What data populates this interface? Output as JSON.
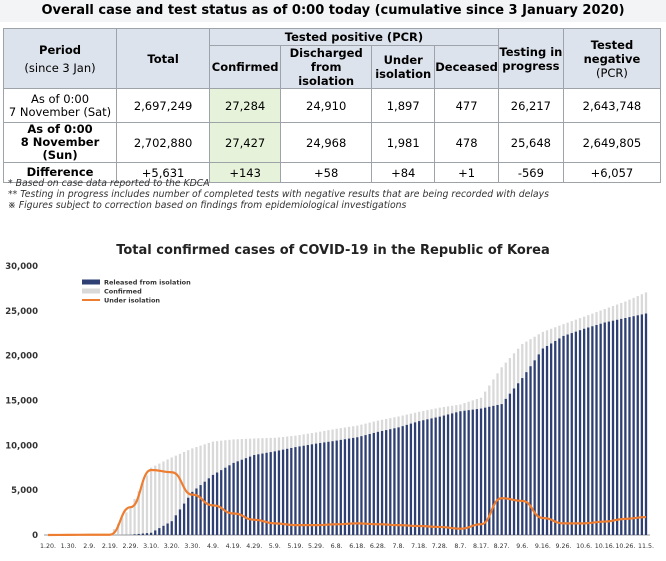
{
  "header": {
    "title": "Overall case and test status as of 0:00 today (cumulative since 3 January 2020)"
  },
  "table": {
    "col_period": "Period",
    "col_period_sub": "(since 3 Jan)",
    "col_total": "Total",
    "col_tested_positive": "Tested positive (PCR)",
    "col_confirmed": "Confirmed",
    "col_discharged_1": "Discharged",
    "col_discharged_2": "from isolation",
    "col_under_1": "Under",
    "col_under_2": "isolation",
    "col_deceased": "Deceased",
    "col_testing_1": "Testing in",
    "col_testing_2": "progress",
    "col_negative_1": "Tested negative",
    "col_negative_2": "(PCR)",
    "rows": [
      {
        "label_1": "As of 0:00",
        "label_2": "7 November (Sat)",
        "total": "2,697,249",
        "confirmed": "27,284",
        "discharged": "24,910",
        "under": "1,897",
        "deceased": "477",
        "testing": "26,217",
        "negative": "2,643,748"
      },
      {
        "label_1": "As of 0:00",
        "label_2": "8 November (Sun)",
        "total": "2,702,880",
        "confirmed": "27,427",
        "discharged": "24,968",
        "under": "1,981",
        "deceased": "478",
        "testing": "25,648",
        "negative": "2,649,805"
      },
      {
        "label_1": "Difference",
        "label_2": "",
        "total": "+5,631",
        "confirmed": "+143",
        "discharged": "+58",
        "under": "+84",
        "deceased": "+1",
        "testing": "-569",
        "negative": "+6,057"
      }
    ]
  },
  "notes": [
    "* Based on case data reported to the KDCA",
    "** Testing in progress includes number of completed tests with negative results that are being recorded with delays",
    "※ Figures subject to correction based on findings from epidemiological investigations"
  ],
  "chart_data": {
    "type": "bar",
    "title": "Total confirmed cases of COVID-19 in the Republic of Korea",
    "xlabel": "",
    "ylabel": "",
    "ylim": [
      0,
      30000
    ],
    "yticks": [
      "0",
      "5,000",
      "10,000",
      "15,000",
      "20,000",
      "25,000",
      "30,000"
    ],
    "ytick_values": [
      0,
      5000,
      10000,
      15000,
      20000,
      25000,
      30000
    ],
    "categories": [
      "1.20.",
      "1.30.",
      "2.9.",
      "2.19.",
      "2.29.",
      "3.10.",
      "3.20.",
      "3.30.",
      "4.9.",
      "4.19.",
      "4.29.",
      "5.9.",
      "5.19.",
      "5.29.",
      "6.8.",
      "6.18.",
      "6.28.",
      "7.8.",
      "7.18.",
      "7.28.",
      "8.7.",
      "8.17.",
      "8.27.",
      "9.6.",
      "9.16.",
      "9.26.",
      "10.6.",
      "10.16.",
      "10.26.",
      "11.5."
    ],
    "legend_position": "top-left",
    "series": [
      {
        "name": "Released from isolation",
        "kind": "bar",
        "color": "#2e3f73",
        "values": [
          0,
          0,
          0,
          0,
          30,
          250,
          1540,
          4810,
          6700,
          8040,
          8920,
          9330,
          9800,
          10190,
          10530,
          10900,
          11500,
          12000,
          12700,
          13200,
          13800,
          14100,
          14600,
          17500,
          20800,
          22200,
          23000,
          23700,
          24200,
          24700
        ]
      },
      {
        "name": "Confirmed",
        "kind": "bar",
        "color": "#d9d9d9",
        "values": [
          1,
          11,
          27,
          31,
          3150,
          7513,
          8652,
          9661,
          10423,
          10661,
          10765,
          10840,
          11078,
          11441,
          11852,
          12198,
          12757,
          13216,
          13745,
          14203,
          14562,
          15318,
          18706,
          21296,
          22657,
          23516,
          24353,
          25199,
          26043,
          27050
        ]
      },
      {
        "name": "Under isolation",
        "kind": "line",
        "color": "#ed7d31",
        "values": [
          1,
          11,
          27,
          31,
          3100,
          7250,
          7000,
          4500,
          3300,
          2400,
          1700,
          1300,
          1100,
          1100,
          1200,
          1300,
          1200,
          1100,
          1000,
          900,
          700,
          1200,
          4100,
          3800,
          1900,
          1300,
          1300,
          1500,
          1800,
          2000
        ]
      }
    ]
  }
}
